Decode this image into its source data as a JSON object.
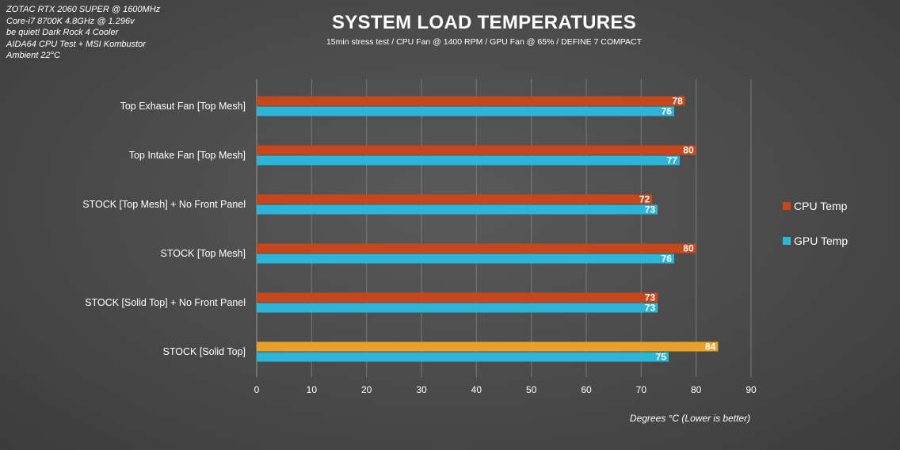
{
  "notes": [
    "ZOTAC RTX 2060 SUPER @ 1600MHz",
    "Core-i7 8700K 4.8GHz @ 1.296v",
    "be quiet! Dark Rock 4 Cooler",
    "AIDA64 CPU Test + MSI Kombustor",
    "Ambient 22°C"
  ],
  "chart_data": {
    "type": "bar",
    "orientation": "horizontal",
    "title": "SYSTEM LOAD TEMPERATURES",
    "subtitle": "15min stress test / CPU Fan @ 1400 RPM / GPU Fan @ 65% / DEFINE 7 COMPACT",
    "xlabel": "Degrees °C (Lower is better)",
    "ylabel": "",
    "xlim": [
      0,
      90
    ],
    "xticks": [
      "0",
      "10",
      "20",
      "30",
      "40",
      "50",
      "60",
      "70",
      "80",
      "90"
    ],
    "grid": "vertical",
    "legend_position": "right",
    "categories": [
      "Top Exhasut Fan [Top Mesh]",
      "Top Intake Fan [Top Mesh]",
      "STOCK [Top Mesh] + No Front Panel",
      "STOCK [Top Mesh]",
      "STOCK [Solid Top] + No Front Panel",
      "STOCK [Solid Top]"
    ],
    "series": [
      {
        "name": "CPU Temp",
        "color": "#c8471a",
        "values": [
          78,
          80,
          72,
          80,
          73,
          84
        ],
        "highlight_color": "#e8a22a",
        "highlight_index": 5
      },
      {
        "name": "GPU Temp",
        "color": "#2bb5d8",
        "values": [
          76,
          77,
          73,
          76,
          73,
          75
        ]
      }
    ]
  }
}
